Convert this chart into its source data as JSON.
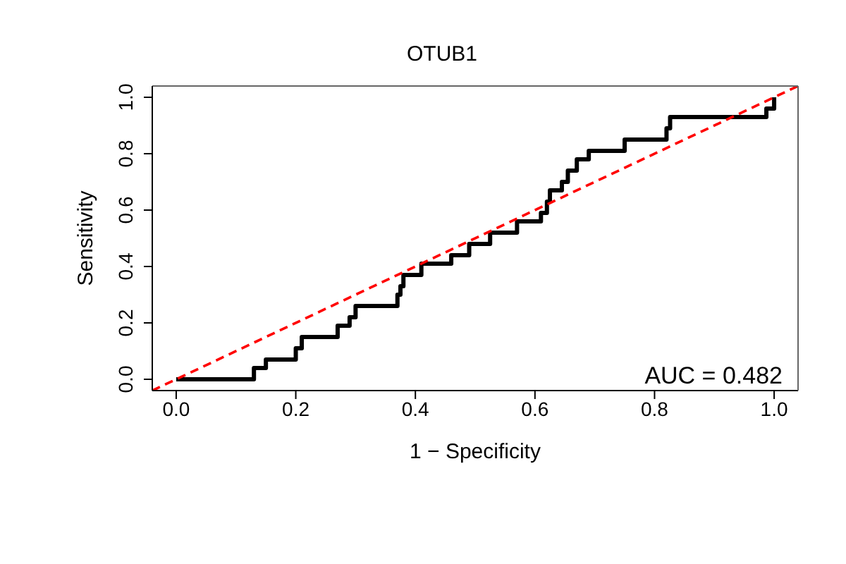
{
  "chart_data": {
    "type": "step",
    "title": "OTUB1",
    "xlabel": "1 − Specificity",
    "ylabel": "Sensitivity",
    "xlim": [
      -0.04,
      1.04
    ],
    "ylim": [
      -0.04,
      1.04
    ],
    "xticks": [
      {
        "value": 0,
        "label": "0.0"
      },
      {
        "value": 0.2,
        "label": "0.2"
      },
      {
        "value": 0.4,
        "label": "0.4"
      },
      {
        "value": 0.6,
        "label": "0.6"
      },
      {
        "value": 0.8,
        "label": "0.8"
      },
      {
        "value": 1,
        "label": "1.0"
      }
    ],
    "yticks": [
      {
        "value": 0,
        "label": "0.0"
      },
      {
        "value": 0.2,
        "label": "0.2"
      },
      {
        "value": 0.4,
        "label": "0.4"
      },
      {
        "value": 0.6,
        "label": "0.6"
      },
      {
        "value": 0.8,
        "label": "0.8"
      },
      {
        "value": 1,
        "label": "1.0"
      }
    ],
    "annotations": [
      "AUC = 0.482"
    ],
    "series": [
      {
        "type": "step",
        "color": "#000000",
        "x": [
          0,
          0.13,
          0.15,
          0.2,
          0.21,
          0.27,
          0.29,
          0.3,
          0.37,
          0.375,
          0.38,
          0.41,
          0.46,
          0.49,
          0.525,
          0.57,
          0.61,
          0.62,
          0.625,
          0.645,
          0.655,
          0.67,
          0.69,
          0.75,
          0.82,
          0.826,
          0.987,
          1.0
        ],
        "values": [
          0,
          0.04,
          0.07,
          0.11,
          0.15,
          0.19,
          0.22,
          0.26,
          0.3,
          0.33,
          0.37,
          0.41,
          0.44,
          0.48,
          0.52,
          0.56,
          0.59,
          0.63,
          0.67,
          0.7,
          0.74,
          0.78,
          0.81,
          0.85,
          0.89,
          0.93,
          0.96,
          1.0
        ]
      },
      {
        "type": "line",
        "color": "#ff0000",
        "line_style": "dashed",
        "x": [
          -0.04,
          1.04
        ],
        "values": [
          -0.04,
          1.04
        ]
      }
    ]
  }
}
